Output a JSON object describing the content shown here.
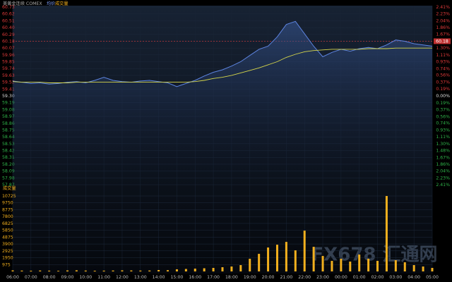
{
  "header": {
    "symbol": "美黄金连续 COMEX",
    "avg_label": "均价",
    "volume_label": "成交量"
  },
  "watermark": "FX678 汇通网",
  "chart_data": [
    {
      "type": "line",
      "x": [
        0,
        0.5,
        1,
        1.5,
        2,
        2.5,
        3,
        3.5,
        4,
        4.5,
        5,
        5.5,
        6,
        6.5,
        7,
        7.5,
        8,
        8.5,
        9,
        9.5,
        10,
        10.5,
        11,
        11.5,
        12,
        12.5,
        13,
        13.5,
        14,
        14.5,
        15,
        15.5,
        16,
        16.5,
        17,
        17.5,
        18,
        18.5,
        19,
        19.5,
        20,
        20.5,
        21,
        21.5,
        22,
        22.5,
        23
      ],
      "xlim": [
        0,
        23
      ],
      "xticks": [
        {
          "value": 0,
          "label": "06:00"
        },
        {
          "value": 1,
          "label": "07:00"
        },
        {
          "value": 2,
          "label": "08:00"
        },
        {
          "value": 3,
          "label": "09:00"
        },
        {
          "value": 4,
          "label": "10:00"
        },
        {
          "value": 5,
          "label": "11:00"
        },
        {
          "value": 6,
          "label": "12:00"
        },
        {
          "value": 7,
          "label": "13:00"
        },
        {
          "value": 8,
          "label": "14:00"
        },
        {
          "value": 9,
          "label": "15:00"
        },
        {
          "value": 10,
          "label": "16:00"
        },
        {
          "value": 11,
          "label": "17:00"
        },
        {
          "value": 12,
          "label": "18:00"
        },
        {
          "value": 13,
          "label": "19:00"
        },
        {
          "value": 14,
          "label": "20:00"
        },
        {
          "value": 15,
          "label": "21:00"
        },
        {
          "value": 16,
          "label": "22:00"
        },
        {
          "value": 17,
          "label": "23:00"
        },
        {
          "value": 18,
          "label": "00:00"
        },
        {
          "value": 19,
          "label": "01:00"
        },
        {
          "value": 20,
          "label": "02:00"
        },
        {
          "value": 21,
          "label": "03:00"
        },
        {
          "value": 22,
          "label": "04:00"
        },
        {
          "value": 23,
          "label": "05:00"
        }
      ],
      "ylim": [
        57.87,
        60.73
      ],
      "yticks": [
        {
          "value": 60.73,
          "label": "60.73"
        },
        {
          "value": 60.62,
          "label": "60.62"
        },
        {
          "value": 60.51,
          "label": "60.51"
        },
        {
          "value": 60.4,
          "label": "60.40"
        },
        {
          "value": 60.29,
          "label": "60.29"
        },
        {
          "value": 60.18,
          "label": "60.18"
        },
        {
          "value": 60.07,
          "label": "60.07"
        },
        {
          "value": 59.96,
          "label": "59.96"
        },
        {
          "value": 59.85,
          "label": "59.85"
        },
        {
          "value": 59.74,
          "label": "59.74"
        },
        {
          "value": 59.63,
          "label": "59.63"
        },
        {
          "value": 59.52,
          "label": "59.52"
        },
        {
          "value": 59.41,
          "label": "59.41"
        },
        {
          "value": 59.3,
          "label": "59.30"
        },
        {
          "value": 59.19,
          "label": "59.19"
        },
        {
          "value": 59.08,
          "label": "59.08"
        },
        {
          "value": 58.97,
          "label": "58.97"
        },
        {
          "value": 58.86,
          "label": "58.86"
        },
        {
          "value": 58.75,
          "label": "58.75"
        },
        {
          "value": 58.64,
          "label": "58.64"
        },
        {
          "value": 58.53,
          "label": "58.53"
        },
        {
          "value": 58.42,
          "label": "58.42"
        },
        {
          "value": 58.31,
          "label": "58.31"
        },
        {
          "value": 58.2,
          "label": "58.20"
        },
        {
          "value": 58.09,
          "label": "58.09"
        },
        {
          "value": 57.98,
          "label": "57.98"
        },
        {
          "value": 57.87,
          "label": "57.87"
        }
      ],
      "y2lim": [
        -2.41,
        2.41
      ],
      "y2ticks": [
        {
          "value": 2.41,
          "label": "2.41%"
        },
        {
          "value": 2.23,
          "label": "2.23%"
        },
        {
          "value": 2.04,
          "label": "2.04%"
        },
        {
          "value": 1.86,
          "label": "1.86%"
        },
        {
          "value": 1.67,
          "label": "1.67%"
        },
        {
          "value": 1.48,
          "label": "1.48%"
        },
        {
          "value": 1.3,
          "label": "1.30%"
        },
        {
          "value": 1.11,
          "label": "1.11%"
        },
        {
          "value": 0.93,
          "label": "0.93%"
        },
        {
          "value": 0.74,
          "label": "0.74%"
        },
        {
          "value": 0.56,
          "label": "0.56%"
        },
        {
          "value": 0.37,
          "label": "0.37%"
        },
        {
          "value": 0.19,
          "label": "0.19%"
        },
        {
          "value": 0,
          "label": "0.00%"
        },
        {
          "value": -0.19,
          "label": "0.19%"
        },
        {
          "value": -0.37,
          "label": "0.37%"
        },
        {
          "value": -0.56,
          "label": "0.56%"
        },
        {
          "value": -0.74,
          "label": "0.74%"
        },
        {
          "value": -0.93,
          "label": "0.93%"
        },
        {
          "value": -1.11,
          "label": "1.11%"
        },
        {
          "value": -1.3,
          "label": "1.30%"
        },
        {
          "value": -1.48,
          "label": "1.48%"
        },
        {
          "value": -1.67,
          "label": "1.67%"
        },
        {
          "value": -1.86,
          "label": "1.86%"
        },
        {
          "value": -2.04,
          "label": "2.04%"
        },
        {
          "value": -2.23,
          "label": "2.23%"
        },
        {
          "value": -2.41,
          "label": "2.41%"
        }
      ],
      "reference_line": 60.18,
      "up_color": "#e03a3a",
      "down_color": "#2fb34a",
      "series": [
        {
          "name": "美黄金连续 COMEX",
          "color": "#5d84e0",
          "values": [
            59.54,
            59.52,
            59.5,
            59.51,
            59.49,
            59.5,
            59.52,
            59.53,
            59.51,
            59.55,
            59.6,
            59.55,
            59.53,
            59.52,
            59.54,
            59.55,
            59.53,
            59.51,
            59.45,
            59.5,
            59.55,
            59.62,
            59.68,
            59.72,
            59.78,
            59.85,
            59.95,
            60.05,
            60.1,
            60.25,
            60.45,
            60.5,
            60.3,
            60.1,
            59.93,
            60.0,
            60.05,
            60.02,
            60.06,
            60.08,
            60.06,
            60.12,
            60.2,
            60.18,
            60.14,
            60.12,
            60.1
          ]
        },
        {
          "name": "均价",
          "color": "#d6d64a",
          "values": [
            59.53,
            59.52,
            59.52,
            59.52,
            59.51,
            59.51,
            59.51,
            59.52,
            59.52,
            59.52,
            59.52,
            59.52,
            59.52,
            59.52,
            59.52,
            59.52,
            59.52,
            59.52,
            59.52,
            59.52,
            59.53,
            59.55,
            59.58,
            59.6,
            59.63,
            59.67,
            59.71,
            59.75,
            59.8,
            59.85,
            59.92,
            59.97,
            60.01,
            60.03,
            60.04,
            60.05,
            60.05,
            60.05,
            60.05,
            60.06,
            60.06,
            60.06,
            60.07,
            60.07,
            60.07,
            60.07,
            60.07
          ]
        }
      ]
    },
    {
      "type": "bar",
      "ylim": [
        0,
        10725
      ],
      "yticks": [
        10725,
        9750,
        8775,
        7800,
        6825,
        5850,
        4875,
        3900,
        2925,
        1950,
        975
      ],
      "series": [
        {
          "name": "成交量",
          "color": "#f2b01e",
          "values": [
            150,
            120,
            100,
            130,
            110,
            90,
            140,
            160,
            120,
            100,
            110,
            130,
            150,
            140,
            120,
            130,
            200,
            180,
            300,
            350,
            400,
            450,
            500,
            600,
            700,
            900,
            1800,
            2500,
            3400,
            3800,
            4200,
            3000,
            5800,
            3500,
            2200,
            1500,
            1800,
            1400,
            2400,
            1800,
            1500,
            10725,
            1600,
            1300,
            900,
            700,
            500
          ]
        }
      ]
    }
  ]
}
